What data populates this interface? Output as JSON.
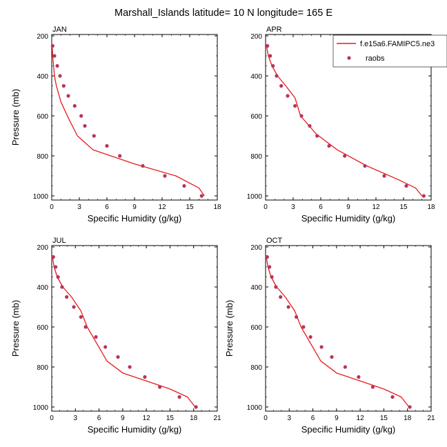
{
  "title": "Marshall_Islands  latitude= 10 N longitude= 165 E",
  "legend": {
    "model_label": "f.e15a6.FAMIPC5.ne3",
    "obs_label": "raobs",
    "placement": "top-right of APR panel",
    "model_color": "#e8191b",
    "obs_color": "#b8345c"
  },
  "chart_data": [
    {
      "type": "line",
      "panel": "JAN",
      "xlabel": "Specific Humidity (g/kg)",
      "ylabel": "Pressure (mb)",
      "xlim": [
        0,
        18
      ],
      "ylim": [
        1000,
        200
      ],
      "y_reversed": true,
      "xticks": [
        0,
        3,
        6,
        9,
        12,
        15,
        18
      ],
      "yticks": [
        200,
        400,
        600,
        800,
        1000
      ],
      "series": [
        {
          "name": "f.e15a6.FAMIPC5.ne3",
          "kind": "line",
          "x": [
            0.05,
            0.1,
            0.2,
            0.3,
            0.5,
            1.0,
            1.8,
            2.8,
            4.5,
            9.0,
            13.5,
            16.0,
            16.6
          ],
          "y": [
            250,
            300,
            350,
            400,
            450,
            530,
            610,
            700,
            770,
            840,
            900,
            960,
            1000
          ]
        },
        {
          "name": "raobs",
          "kind": "scatter",
          "x": [
            0.1,
            0.3,
            0.6,
            0.9,
            1.3,
            1.8,
            2.5,
            3.2,
            3.6,
            4.6,
            6.0,
            7.4,
            9.9,
            12.3,
            14.4,
            16.3
          ],
          "y": [
            250,
            300,
            350,
            400,
            450,
            500,
            550,
            600,
            650,
            700,
            750,
            800,
            850,
            900,
            950,
            1000
          ]
        }
      ]
    },
    {
      "type": "line",
      "panel": "APR",
      "xlabel": "Specific Humidity (g/kg)",
      "ylabel": "",
      "xlim": [
        0,
        18
      ],
      "ylim": [
        1000,
        200
      ],
      "y_reversed": true,
      "xticks": [
        0,
        3,
        6,
        9,
        12,
        15,
        18
      ],
      "yticks": [
        200,
        400,
        600,
        800,
        1000
      ],
      "series": [
        {
          "name": "f.e15a6.FAMIPC5.ne3",
          "kind": "line",
          "x": [
            0.1,
            0.3,
            0.7,
            1.3,
            2.2,
            3.2,
            3.8,
            5.5,
            7.8,
            11.0,
            14.5,
            16.3,
            17.0
          ],
          "y": [
            250,
            300,
            350,
            400,
            450,
            510,
            600,
            690,
            770,
            850,
            920,
            960,
            1000
          ]
        },
        {
          "name": "raobs",
          "kind": "scatter",
          "x": [
            0.2,
            0.5,
            0.8,
            1.2,
            1.7,
            2.4,
            3.2,
            3.9,
            4.8,
            5.6,
            6.9,
            8.6,
            10.8,
            12.9,
            15.3,
            17.2
          ],
          "y": [
            250,
            300,
            350,
            400,
            450,
            500,
            550,
            600,
            650,
            700,
            750,
            800,
            850,
            900,
            950,
            1000
          ]
        }
      ]
    },
    {
      "type": "line",
      "panel": "JUL",
      "xlabel": "Specific Humidity (g/kg)",
      "ylabel": "Pressure (mb)",
      "xlim": [
        0,
        21
      ],
      "ylim": [
        1000,
        200
      ],
      "y_reversed": true,
      "xticks": [
        0,
        3,
        6,
        9,
        12,
        15,
        18,
        21
      ],
      "yticks": [
        200,
        400,
        600,
        800,
        1000
      ],
      "series": [
        {
          "name": "f.e15a6.FAMIPC5.ne3",
          "kind": "line",
          "x": [
            0.1,
            0.3,
            0.7,
            1.4,
            2.5,
            3.7,
            4.5,
            7.0,
            9.0,
            12.0,
            15.0,
            17.2,
            18.2
          ],
          "y": [
            250,
            300,
            350,
            400,
            450,
            520,
            600,
            770,
            830,
            870,
            910,
            950,
            1000
          ]
        },
        {
          "name": "raobs",
          "kind": "scatter",
          "x": [
            0.2,
            0.5,
            0.8,
            1.3,
            1.9,
            2.8,
            3.7,
            4.3,
            5.6,
            6.8,
            8.4,
            9.9,
            11.8,
            13.7,
            16.2,
            18.3
          ],
          "y": [
            250,
            300,
            350,
            400,
            450,
            500,
            550,
            600,
            650,
            700,
            750,
            800,
            850,
            900,
            950,
            1000
          ]
        }
      ]
    },
    {
      "type": "line",
      "panel": "OCT",
      "xlabel": "Specific Humidity (g/kg)",
      "ylabel": "Pressure (mb)",
      "xlim": [
        0,
        21
      ],
      "ylim": [
        1000,
        200
      ],
      "y_reversed": true,
      "xticks": [
        0,
        3,
        6,
        9,
        12,
        15,
        18,
        21
      ],
      "yticks": [
        200,
        400,
        600,
        800,
        1000
      ],
      "series": [
        {
          "name": "f.e15a6.FAMIPC5.ne3",
          "kind": "line",
          "x": [
            0.1,
            0.3,
            0.7,
            1.4,
            2.5,
            3.7,
            4.5,
            7.0,
            9.0,
            12.0,
            15.0,
            17.2,
            18.2
          ],
          "y": [
            250,
            300,
            350,
            400,
            450,
            520,
            600,
            770,
            830,
            870,
            910,
            950,
            1000
          ]
        },
        {
          "name": "raobs",
          "kind": "scatter",
          "x": [
            0.2,
            0.5,
            0.8,
            1.3,
            1.9,
            2.9,
            3.9,
            4.8,
            5.7,
            7.1,
            8.4,
            10.1,
            11.8,
            13.6,
            16.1,
            18.3
          ],
          "y": [
            250,
            300,
            350,
            400,
            450,
            500,
            550,
            600,
            650,
            700,
            750,
            800,
            850,
            900,
            950,
            1000
          ]
        }
      ]
    }
  ]
}
